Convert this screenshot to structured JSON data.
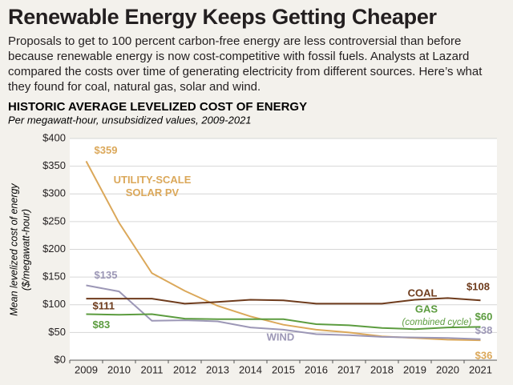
{
  "header": {
    "title": "Renewable Energy Keeps Getting Cheaper",
    "text": "Proposals to get to 100 percent carbon-free energy are less controversial than before because renewable energy is now cost-competitive with fossil fuels. Analysts at Lazard compared the costs over time of generating electricity from different sources. Here’s what they found for coal, natural gas, solar and wind."
  },
  "chart_data": {
    "type": "line",
    "title": "HISTORIC AVERAGE LEVELIZED COST OF ENERGY",
    "subtitle": "Per megawatt-hour, unsubsidized values, 2009-2021",
    "ylabel": [
      "Mean levelized cost of energy",
      "($/megawatt-hour)"
    ],
    "categories": [
      "2009",
      "2010",
      "2011",
      "2012",
      "2013",
      "2014",
      "2015",
      "2016",
      "2017",
      "2018",
      "2019",
      "2020",
      "2021"
    ],
    "ylim": [
      0,
      400
    ],
    "yticks": [
      {
        "value": 0,
        "label": "$0"
      },
      {
        "value": 50,
        "label": "$50"
      },
      {
        "value": 100,
        "label": "$100"
      },
      {
        "value": 150,
        "label": "$150"
      },
      {
        "value": 200,
        "label": "$200"
      },
      {
        "value": 250,
        "label": "$250"
      },
      {
        "value": 300,
        "label": "$300"
      },
      {
        "value": 350,
        "label": "$350"
      },
      {
        "value": 400,
        "label": "$400"
      }
    ],
    "grid": true,
    "series": [
      {
        "name": "UTILITY-SCALE SOLAR PV",
        "color": "#dba85a",
        "values": [
          359,
          248,
          157,
          125,
          98,
          79,
          64,
          55,
          50,
          43,
          40,
          37,
          36
        ],
        "value_labels": [
          "$359",
          null,
          null,
          null,
          null,
          null,
          null,
          null,
          null,
          null,
          null,
          null,
          "$36"
        ]
      },
      {
        "name": "WIND",
        "color": "#9c97b6",
        "values": [
          135,
          124,
          71,
          72,
          70,
          59,
          55,
          47,
          45,
          42,
          41,
          40,
          38
        ],
        "value_labels": [
          "$135",
          null,
          null,
          null,
          null,
          null,
          null,
          null,
          null,
          null,
          null,
          null,
          "$38"
        ]
      },
      {
        "name": "COAL",
        "color": "#6e3b1c",
        "values": [
          111,
          111,
          111,
          102,
          105,
          109,
          108,
          102,
          102,
          102,
          109,
          112,
          108
        ],
        "value_labels": [
          "$111",
          null,
          null,
          null,
          null,
          null,
          null,
          null,
          null,
          null,
          null,
          null,
          "$108"
        ]
      },
      {
        "name": "GAS",
        "note": "(combined cycle)",
        "color": "#5c9c3f",
        "values": [
          83,
          82,
          83,
          75,
          74,
          74,
          74,
          65,
          63,
          58,
          56,
          59,
          60
        ],
        "value_labels": [
          "$83",
          null,
          null,
          null,
          null,
          null,
          null,
          null,
          null,
          null,
          null,
          null,
          "$60"
        ]
      }
    ]
  }
}
